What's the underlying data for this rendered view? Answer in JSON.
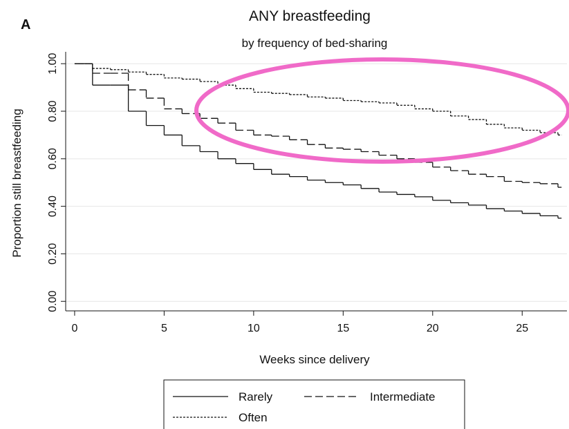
{
  "chart_data": {
    "type": "step",
    "panel_label": "A",
    "title": "ANY breastfeeding",
    "subtitle": "by frequency of bed-sharing",
    "x_label": "Weeks since delivery",
    "y_label": "Proportion still breastfeeding",
    "x": [
      0,
      1,
      2,
      3,
      4,
      5,
      6,
      7,
      8,
      9,
      10,
      11,
      12,
      13,
      14,
      15,
      16,
      17,
      18,
      19,
      20,
      21,
      22,
      23,
      24,
      25,
      26,
      27
    ],
    "series": [
      {
        "name": "Rarely",
        "color": "#111111",
        "dash": "solid",
        "values": [
          1.0,
          0.91,
          0.91,
          0.8,
          0.74,
          0.7,
          0.655,
          0.63,
          0.6,
          0.58,
          0.555,
          0.535,
          0.525,
          0.51,
          0.5,
          0.49,
          0.475,
          0.46,
          0.45,
          0.44,
          0.425,
          0.415,
          0.405,
          0.39,
          0.38,
          0.37,
          0.36,
          0.35
        ]
      },
      {
        "name": "Intermediate",
        "color": "#111111",
        "dash": "dashed",
        "values": [
          1.0,
          0.96,
          0.96,
          0.89,
          0.855,
          0.81,
          0.79,
          0.77,
          0.75,
          0.72,
          0.7,
          0.695,
          0.68,
          0.66,
          0.645,
          0.64,
          0.63,
          0.615,
          0.6,
          0.585,
          0.565,
          0.55,
          0.535,
          0.525,
          0.505,
          0.5,
          0.495,
          0.48
        ]
      },
      {
        "name": "Often",
        "color": "#111111",
        "dash": "dotted",
        "values": [
          1.0,
          0.98,
          0.975,
          0.965,
          0.955,
          0.94,
          0.935,
          0.925,
          0.91,
          0.895,
          0.88,
          0.875,
          0.87,
          0.86,
          0.855,
          0.845,
          0.84,
          0.835,
          0.825,
          0.81,
          0.8,
          0.78,
          0.765,
          0.745,
          0.73,
          0.72,
          0.71,
          0.7
        ]
      }
    ],
    "xlim": [
      -0.5,
      27.5
    ],
    "ylim": [
      -0.04,
      1.05
    ],
    "xticks": [
      0,
      5,
      10,
      15,
      20,
      25
    ],
    "yticks": [
      {
        "value": 0,
        "label": "0.00"
      },
      {
        "value": 0.2,
        "label": "0.20"
      },
      {
        "value": 0.4,
        "label": "0.40"
      },
      {
        "value": 0.6,
        "label": "0.60"
      },
      {
        "value": 0.8,
        "label": "0.80"
      },
      {
        "value": 1,
        "label": "1.00"
      }
    ],
    "grid": true
  }
}
